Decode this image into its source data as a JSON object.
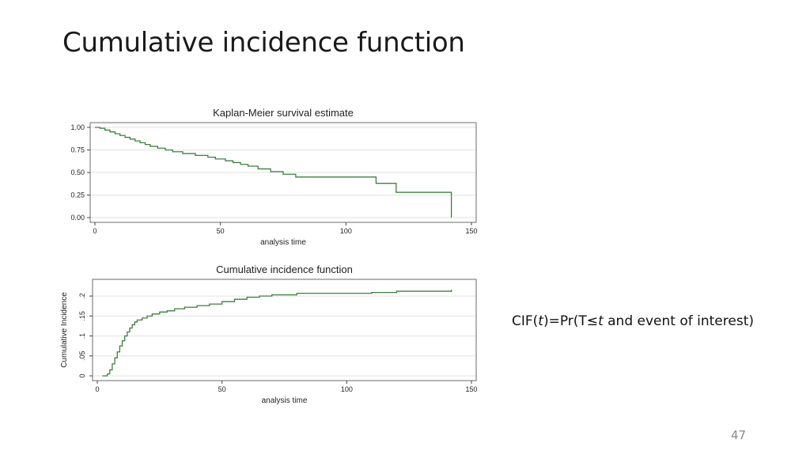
{
  "slide": {
    "title": "Cumulative incidence function",
    "formula": {
      "prefix": "CIF(",
      "t1": "t",
      "mid": ")=Pr(T≤",
      "t2": "t",
      "suffix": " and event of interest)"
    },
    "page_number": "47"
  },
  "colors": {
    "line": "#3f7f3f",
    "grid": "#e2e2e2",
    "frame": "#6b6b6b"
  },
  "chart_data": [
    {
      "type": "line",
      "step": true,
      "title": "Kaplan-Meier survival estimate",
      "xlabel": "analysis time",
      "ylabel": "",
      "xlim": [
        0,
        150
      ],
      "ylim": [
        0,
        1
      ],
      "xticks": [
        0,
        50,
        100,
        150
      ],
      "xtick_labels": [
        "0",
        "50",
        "100",
        "150"
      ],
      "yticks": [
        0,
        0.25,
        0.5,
        0.75,
        1
      ],
      "ytick_labels": [
        "0.00",
        "0.25",
        "0.50",
        "0.75",
        "1.00"
      ],
      "grid": true,
      "series": [
        {
          "x": [
            0,
            2,
            4,
            6,
            8,
            10,
            12,
            14,
            16,
            18,
            20,
            22,
            25,
            28,
            31,
            35,
            40,
            45,
            48,
            52,
            55,
            58,
            61,
            65,
            70,
            75,
            80,
            112,
            120,
            142,
            142
          ],
          "y": [
            1.0,
            0.99,
            0.97,
            0.95,
            0.93,
            0.91,
            0.89,
            0.87,
            0.85,
            0.83,
            0.81,
            0.79,
            0.77,
            0.75,
            0.73,
            0.71,
            0.69,
            0.67,
            0.65,
            0.63,
            0.61,
            0.59,
            0.57,
            0.54,
            0.51,
            0.48,
            0.45,
            0.38,
            0.28,
            0.28,
            0.0
          ]
        }
      ]
    },
    {
      "type": "line",
      "step": true,
      "title": "Cumulative incidence function",
      "xlabel": "analysis time",
      "ylabel": "Cumulative Incidence",
      "xlim": [
        0,
        150
      ],
      "ylim": [
        0,
        0.23
      ],
      "xticks": [
        0,
        50,
        100,
        150
      ],
      "xtick_labels": [
        "0",
        "50",
        "100",
        "150"
      ],
      "yticks": [
        0,
        0.05,
        0.1,
        0.15,
        0.2
      ],
      "ytick_labels": [
        "0",
        ".05",
        ".1",
        ".15",
        ".2"
      ],
      "grid": true,
      "series": [
        {
          "x": [
            2,
            4,
            5,
            6,
            7,
            8,
            9,
            10,
            11,
            12,
            13,
            14,
            15,
            16,
            18,
            20,
            22,
            25,
            28,
            31,
            35,
            40,
            45,
            50,
            55,
            60,
            65,
            70,
            80,
            110,
            120,
            142,
            142
          ],
          "y": [
            0.0,
            0.005,
            0.015,
            0.03,
            0.045,
            0.06,
            0.075,
            0.088,
            0.1,
            0.11,
            0.12,
            0.128,
            0.135,
            0.14,
            0.145,
            0.15,
            0.155,
            0.16,
            0.163,
            0.168,
            0.172,
            0.176,
            0.18,
            0.186,
            0.192,
            0.197,
            0.2,
            0.203,
            0.207,
            0.209,
            0.212,
            0.212,
            0.216
          ]
        }
      ]
    }
  ]
}
